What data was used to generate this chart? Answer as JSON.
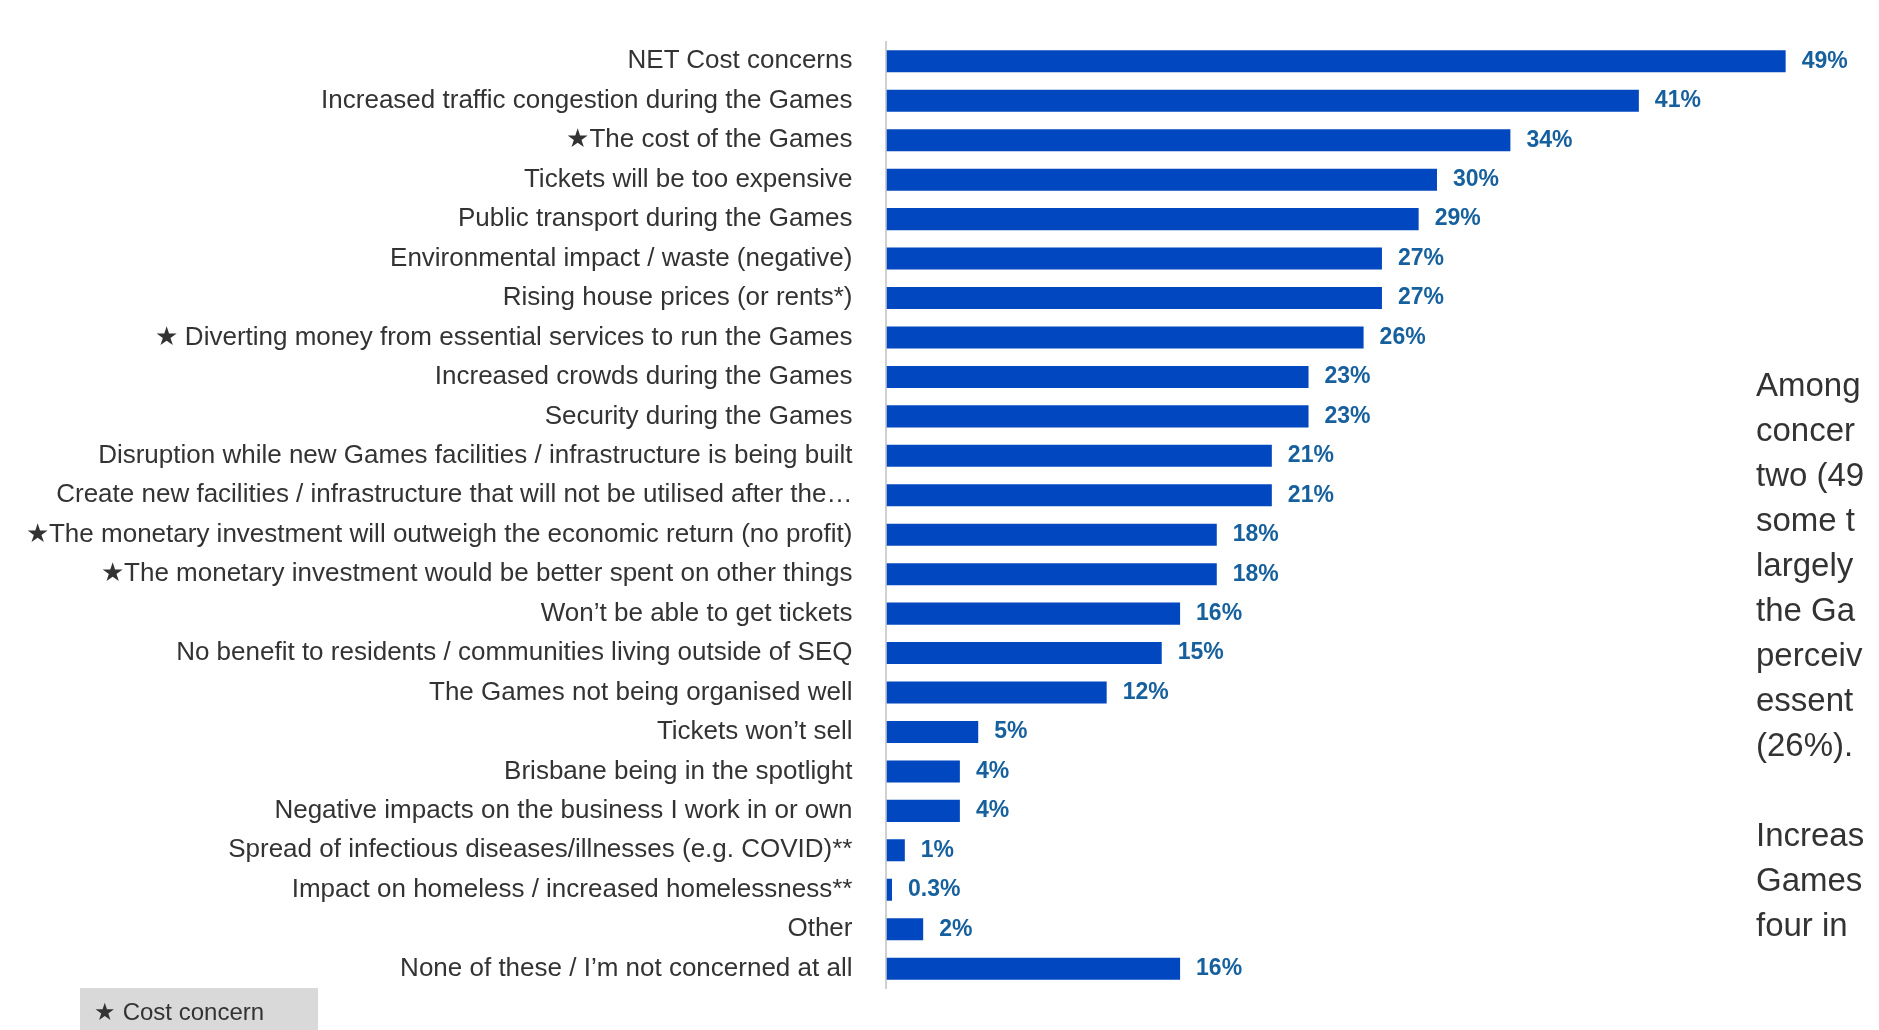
{
  "chart_data": {
    "type": "bar",
    "orientation": "horizontal",
    "categories": [
      "NET Cost concerns",
      "Increased traffic congestion during the Games",
      "★The cost of the Games",
      "Tickets will be too expensive",
      "Public transport during the Games",
      "Environmental impact / waste (negative)",
      "Rising house prices (or rents*)",
      "★ Diverting money from essential services to run the Games",
      "Increased crowds during the Games",
      "Security during the Games",
      "Disruption while new Games facilities / infrastructure is being built",
      "Create new facilities / infrastructure that will not be utilised after the…",
      "★The monetary investment will outweigh the economic return (no profit)",
      "★The monetary investment would be better spent on other things",
      "Won’t be able to get tickets",
      "No benefit to residents / communities living outside of SEQ",
      "The Games not being organised well",
      "Tickets won’t sell",
      "Brisbane being in the spotlight",
      "Negative impacts on the business I work in or own",
      "Spread of infectious diseases/illnesses (e.g. COVID)**",
      "Impact on homeless / increased homelessness**",
      "Other",
      "None of these / I’m not concerned at all"
    ],
    "values": [
      49,
      41,
      34,
      30,
      29,
      27,
      27,
      26,
      23,
      23,
      21,
      21,
      18,
      18,
      16,
      15,
      12,
      5,
      4,
      4,
      1,
      0.3,
      2,
      16
    ],
    "value_labels": [
      "49%",
      "41%",
      "34%",
      "30%",
      "29%",
      "27%",
      "27%",
      "26%",
      "23%",
      "23%",
      "21%",
      "21%",
      "18%",
      "18%",
      "16%",
      "15%",
      "12%",
      "5%",
      "4%",
      "4%",
      "1%",
      "0.3%",
      "2%",
      "16%"
    ],
    "color": "#0047c0",
    "legend": false,
    "annotations": [
      "Among\nconcer\ntwo (49\nsome t\nlargely\nthe Ga\nperceiv\nessent\n(26%).\n\nIncreas\nGames\nfour in",
      "★ Cost concern"
    ]
  }
}
